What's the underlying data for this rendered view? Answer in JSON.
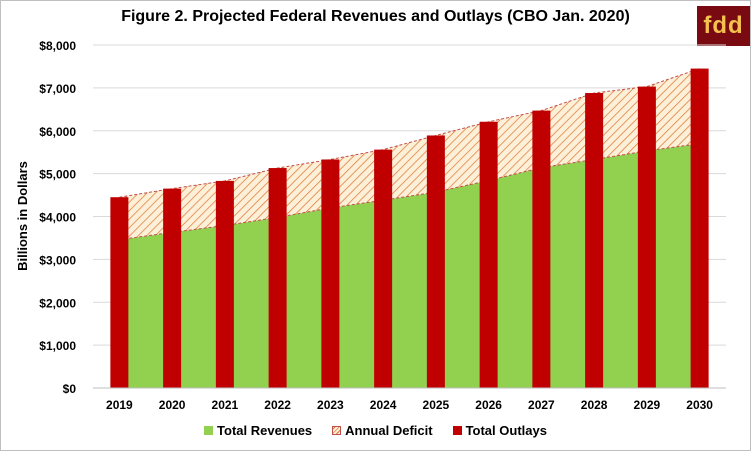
{
  "logo": {
    "text": "fdd"
  },
  "chart_data": {
    "type": "bar",
    "title": "Figure 2. Projected Federal Revenues and Outlays (CBO Jan. 2020)",
    "ylabel": "Billions in Dollars",
    "xlabel": "",
    "categories": [
      "2019",
      "2020",
      "2021",
      "2022",
      "2023",
      "2024",
      "2025",
      "2026",
      "2027",
      "2028",
      "2029",
      "2030"
    ],
    "ylim": [
      0,
      8000
    ],
    "yticks": [
      0,
      1000,
      2000,
      3000,
      4000,
      5000,
      6000,
      7000,
      8000
    ],
    "ytick_labels": [
      "$0",
      "$1,000",
      "$2,000",
      "$3,000",
      "$4,000",
      "$5,000",
      "$6,000",
      "$7,000",
      "$8,000"
    ],
    "grid": true,
    "legend_position": "bottom",
    "series": [
      {
        "name": "Total Revenues",
        "type": "area",
        "color": "#92d050",
        "values": [
          3460,
          3630,
          3790,
          3980,
          4200,
          4380,
          4570,
          4840,
          5140,
          5330,
          5530,
          5700
        ]
      },
      {
        "name": "Annual Deficit",
        "type": "stacked-area-hatched",
        "color": "#e07a3a",
        "values": [
          990,
          1020,
          1040,
          1150,
          1130,
          1180,
          1320,
          1370,
          1330,
          1550,
          1500,
          1750
        ]
      },
      {
        "name": "Total Outlays",
        "type": "bar",
        "color": "#c00000",
        "values": [
          4450,
          4650,
          4830,
          5130,
          5330,
          5560,
          5890,
          6210,
          6470,
          6880,
          7030,
          7450
        ]
      }
    ]
  }
}
